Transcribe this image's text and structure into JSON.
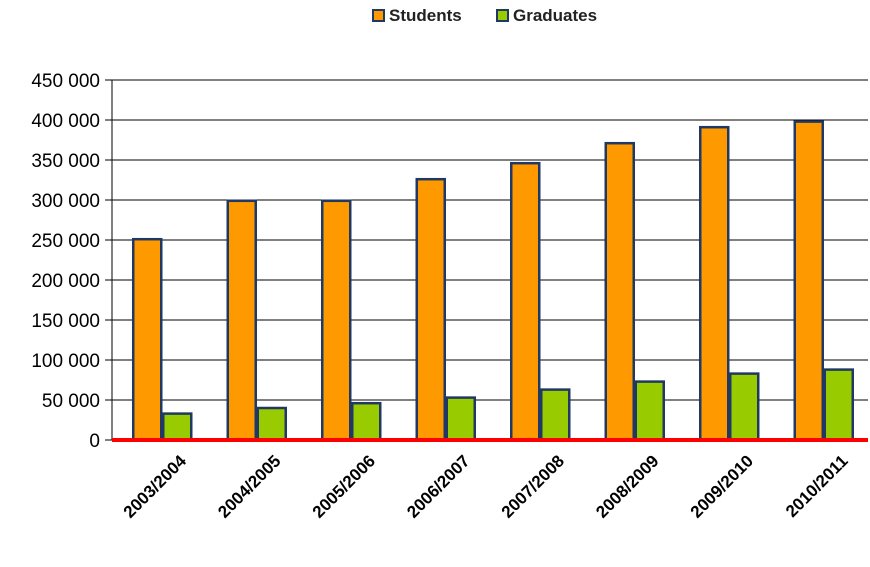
{
  "chart_data": {
    "type": "bar",
    "categories": [
      "2003/2004",
      "2004/2005",
      "2005/2006",
      "2006/2007",
      "2007/2008",
      "2008/2009",
      "2009/2010",
      "2010/2011"
    ],
    "series": [
      {
        "name": "Students",
        "values": [
          251000,
          299000,
          299000,
          326000,
          346000,
          371000,
          391000,
          398000
        ]
      },
      {
        "name": "Graduates",
        "values": [
          33000,
          40000,
          46000,
          53000,
          63000,
          73000,
          83000,
          88000
        ]
      }
    ],
    "ylim": [
      0,
      450000
    ],
    "yticks": [
      0,
      50000,
      100000,
      150000,
      200000,
      250000,
      300000,
      350000,
      400000,
      450000
    ],
    "ytick_labels": [
      "0",
      "50 000",
      "100 000",
      "150 000",
      "200 000",
      "250 000",
      "300 000",
      "350 000",
      "400 000",
      "450 000"
    ],
    "grid": true,
    "legend_position": "top-center",
    "colors": {
      "students": "#ff9900",
      "graduates": "#99cc00",
      "bar_border": "#1f3864",
      "baseline": "#ff0000",
      "grid": "#000000"
    }
  }
}
